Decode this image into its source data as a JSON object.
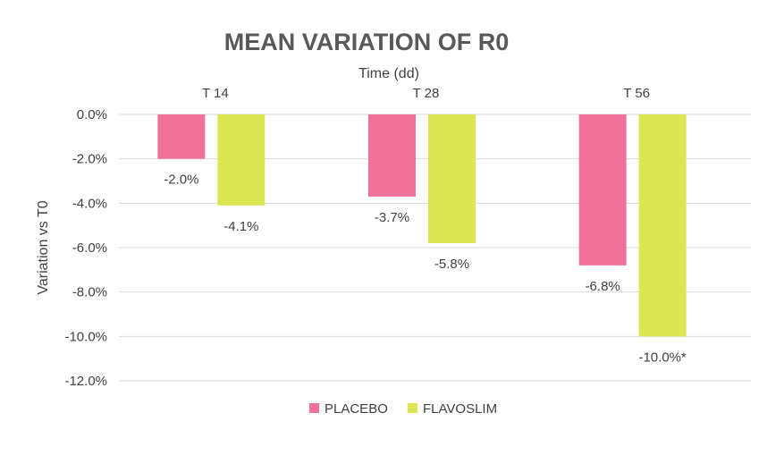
{
  "chart_data": {
    "type": "bar",
    "title": "MEAN VARIATION OF R0",
    "xlabel": "Time (dd)",
    "ylabel": "Variation vs T0",
    "categories": [
      "T 14",
      "T 28",
      "T 56"
    ],
    "series": [
      {
        "name": "PLACEBO",
        "values": [
          -2.0,
          -3.7,
          -6.8
        ],
        "labels": [
          "-2.0%",
          "-3.7%",
          "-6.8%"
        ],
        "color": "#ee7299"
      },
      {
        "name": "FLAVOSLIM",
        "values": [
          -4.1,
          -5.8,
          -10.0
        ],
        "labels": [
          "-4.1%",
          "-5.8%",
          "-10.0%*"
        ],
        "color": "#dce652"
      }
    ],
    "ylim": [
      -12,
      0
    ],
    "yticks": [
      0,
      -2,
      -4,
      -6,
      -8,
      -10,
      -12
    ],
    "ytick_labels": [
      "0.0%",
      "-2.0%",
      "-4.0%",
      "-6.0%",
      "-8.0%",
      "-10.0%",
      "-12.0%"
    ],
    "x_axis_position": "top",
    "grid": true,
    "legend_position": "bottom",
    "colors": {
      "grid": "#d9d9d9",
      "text": "#404040",
      "title": "#595959"
    }
  }
}
